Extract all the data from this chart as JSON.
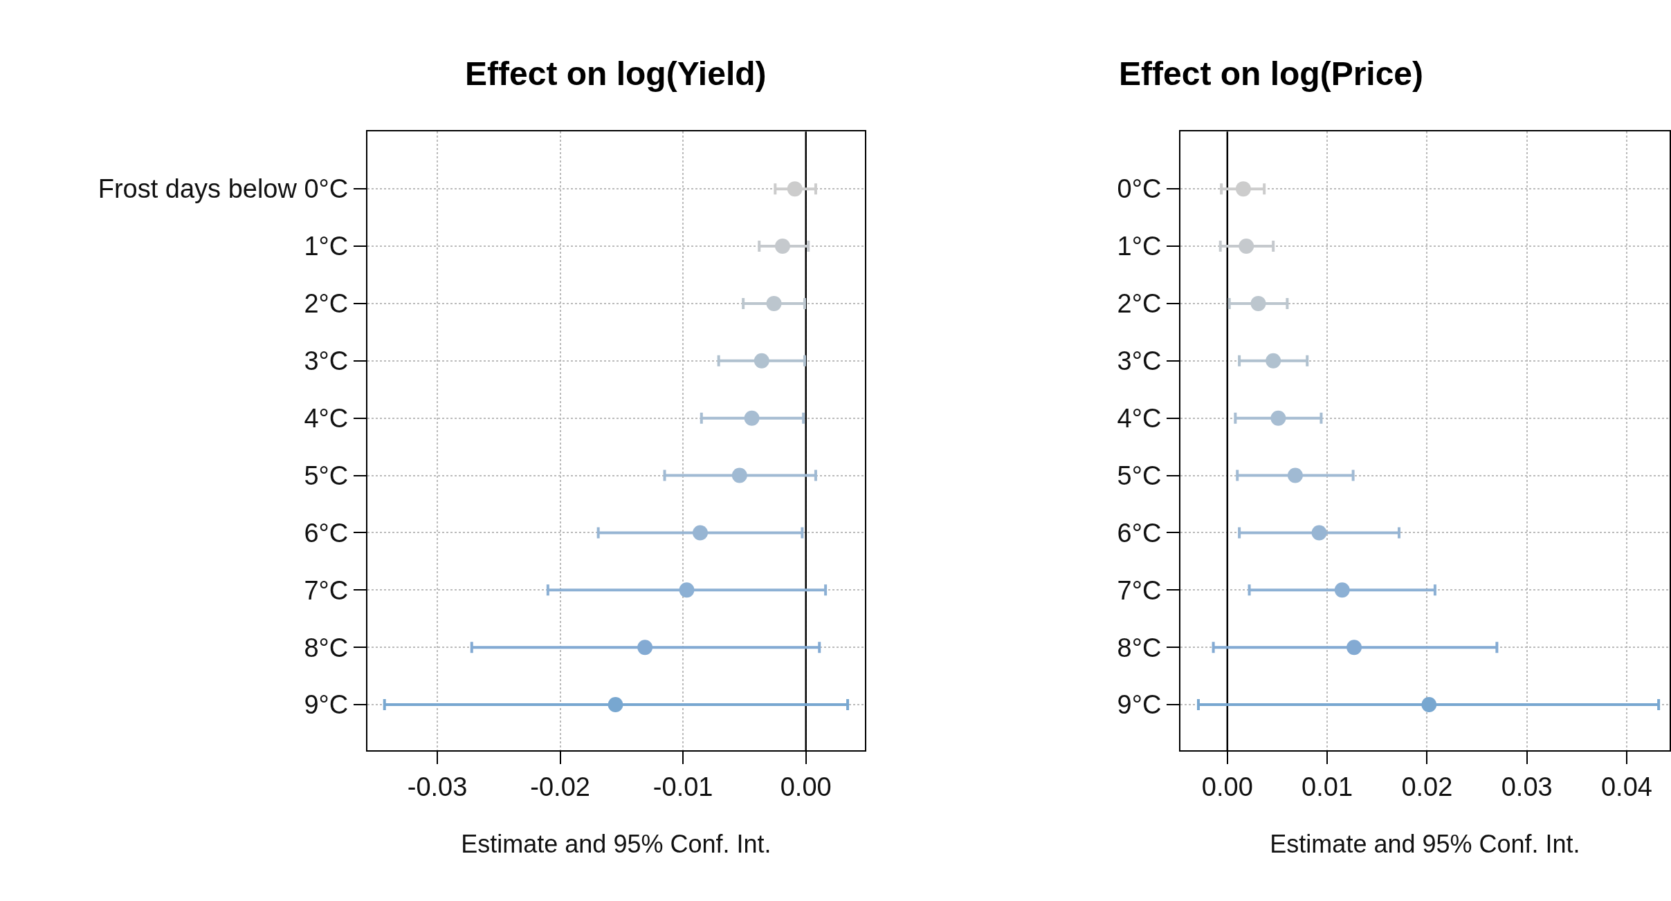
{
  "chart_data": [
    {
      "type": "scatter",
      "orientation": "horizontal",
      "title": "Effect on log(Yield)",
      "xlabel": "Estimate and 95% Conf. Int.",
      "categories": [
        "Frost days below 0°C",
        "1°C",
        "2°C",
        "3°C",
        "4°C",
        "5°C",
        "6°C",
        "7°C",
        "8°C",
        "9°C"
      ],
      "values": [
        -0.0009,
        -0.0019,
        -0.0026,
        -0.0036,
        -0.0044,
        -0.0054,
        -0.0086,
        -0.0097,
        -0.0131,
        -0.0155
      ],
      "errors": [
        [
          -0.0025,
          0.0008
        ],
        [
          -0.0038,
          0.0002
        ],
        [
          -0.0051,
          -0.0001
        ],
        [
          -0.0071,
          -0.0001
        ],
        [
          -0.0085,
          -0.0002
        ],
        [
          -0.0115,
          0.0008
        ],
        [
          -0.0169,
          -0.0003
        ],
        [
          -0.021,
          0.0016
        ],
        [
          -0.0272,
          0.0011
        ],
        [
          -0.0343,
          0.0034
        ]
      ],
      "colors": [
        "#cccccc",
        "#c5c9cd",
        "#bcc6ce",
        "#b0c1cf",
        "#a7bdd2",
        "#a0bad3",
        "#97b5d3",
        "#8cb0d4",
        "#83aad3",
        "#78a7d0"
      ],
      "xlim": [
        -0.0357,
        0.0048
      ],
      "xticks": [
        {
          "value": -0.03,
          "label": "-0.03"
        },
        {
          "value": -0.02,
          "label": "-0.02"
        },
        {
          "value": -0.01,
          "label": "-0.01"
        },
        {
          "value": 0,
          "label": "0.00"
        }
      ],
      "ref_lines": [
        {
          "axis": "x",
          "value": 0,
          "color": "#000000"
        }
      ],
      "grid": true,
      "marker": "circle"
    },
    {
      "type": "scatter",
      "orientation": "horizontal",
      "title": "Effect on log(Price)",
      "xlabel": "Estimate and 95% Conf. Int.",
      "categories": [
        "0°C",
        "1°C",
        "2°C",
        "3°C",
        "4°C",
        "5°C",
        "6°C",
        "7°C",
        "8°C",
        "9°C"
      ],
      "values": [
        0.0016,
        0.0019,
        0.0031,
        0.0046,
        0.0051,
        0.0068,
        0.0092,
        0.0115,
        0.0127,
        0.0202
      ],
      "errors": [
        [
          -0.0006,
          0.0037
        ],
        [
          -0.0007,
          0.0046
        ],
        [
          0.0002,
          0.006
        ],
        [
          0.0012,
          0.008
        ],
        [
          0.0008,
          0.0094
        ],
        [
          0.001,
          0.0126
        ],
        [
          0.0012,
          0.0172
        ],
        [
          0.0022,
          0.0208
        ],
        [
          -0.0014,
          0.027
        ],
        [
          -0.0029,
          0.0432
        ]
      ],
      "colors": [
        "#cccccc",
        "#c5c9cd",
        "#bcc6ce",
        "#b0c1cf",
        "#a7bdd2",
        "#a0bad3",
        "#97b5d3",
        "#8cb0d4",
        "#83aad3",
        "#78a7d0"
      ],
      "xlim": [
        -0.0047,
        0.0443
      ],
      "xticks": [
        {
          "value": 0,
          "label": "0.00"
        },
        {
          "value": 0.01,
          "label": "0.01"
        },
        {
          "value": 0.02,
          "label": "0.02"
        },
        {
          "value": 0.03,
          "label": "0.03"
        },
        {
          "value": 0.04,
          "label": "0.04"
        }
      ],
      "ref_lines": [
        {
          "axis": "x",
          "value": 0,
          "color": "#000000"
        }
      ],
      "grid": true,
      "marker": "circle"
    }
  ]
}
